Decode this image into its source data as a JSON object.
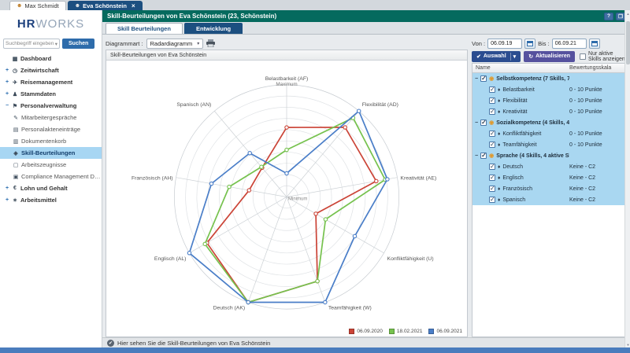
{
  "window": {
    "tabs": [
      {
        "label": "Max Schmidt",
        "active": false
      },
      {
        "label": "Eva Schönstein",
        "active": true,
        "close_glyph": "×"
      }
    ]
  },
  "brand": {
    "hr": "HR",
    "works": "WORKS"
  },
  "sidebar": {
    "search": {
      "placeholder": "Suchbegriff eingeben",
      "caret": "▾",
      "button_label": "Suchen"
    },
    "items": [
      {
        "prefix": "",
        "icon": "dashboard-icon",
        "glyph": "▦",
        "label": "Dashboard",
        "level": 0
      },
      {
        "prefix": "+",
        "icon": "clock-icon",
        "glyph": "◷",
        "label": "Zeitwirtschaft",
        "level": 0
      },
      {
        "prefix": "+",
        "icon": "travel-icon",
        "glyph": "✈",
        "label": "Reisemanagement",
        "level": 0
      },
      {
        "prefix": "+",
        "icon": "person-icon",
        "glyph": "♟",
        "label": "Stammdaten",
        "level": 0
      },
      {
        "prefix": "−",
        "icon": "people-icon",
        "glyph": "⚑",
        "label": "Personalverwaltung",
        "level": 0
      },
      {
        "prefix": "",
        "icon": "chat-icon",
        "glyph": "✎",
        "label": "Mitarbeitergespräche",
        "level": 1
      },
      {
        "prefix": "",
        "icon": "folder-icon",
        "glyph": "▤",
        "label": "Personalakteneinträge",
        "level": 1
      },
      {
        "prefix": "",
        "icon": "inbox-icon",
        "glyph": "▥",
        "label": "Dokumentenkorb",
        "level": 1
      },
      {
        "prefix": "",
        "icon": "skills-icon",
        "glyph": "◈",
        "label": "Skill-Beurteilungen",
        "level": 1,
        "selected": true
      },
      {
        "prefix": "",
        "icon": "document-icon",
        "glyph": "▢",
        "label": "Arbeitszeugnisse",
        "level": 1
      },
      {
        "prefix": "",
        "icon": "document-icon",
        "glyph": "▣",
        "label": "Compliance Management Doku...",
        "level": 1
      },
      {
        "prefix": "+",
        "icon": "money-icon",
        "glyph": "€",
        "label": "Lohn und Gehalt",
        "level": 0
      },
      {
        "prefix": "+",
        "icon": "tools-icon",
        "glyph": "✶",
        "label": "Arbeitsmittel",
        "level": 0
      }
    ]
  },
  "header": {
    "title": "Skill-Beurteilungen von Eva Schönstein (23, Schönstein)",
    "help_glyph": "?",
    "window_glyph": "❐"
  },
  "subtabs": [
    {
      "label": "Skill Beurteilungen",
      "active": true
    },
    {
      "label": "Entwicklung",
      "active": false
    }
  ],
  "toolbar": {
    "diagram_label": "Diagrammart :",
    "diagram_value": "Radardiagramm",
    "caret": "▾"
  },
  "filter": {
    "von_label": "Von :",
    "von_value": "06.09.19",
    "bis_label": "Bis :",
    "bis_value": "06.09.21",
    "auswahl_label": "Auswahl",
    "auswahl_check": "✔",
    "auswahl_caret": "▾",
    "refresh_label": "Aktualisieren",
    "refresh_glyph": "↻",
    "only_active_label": "Nur aktive Skills anzeigen"
  },
  "skills_table": {
    "columns": [
      "Name",
      "Bewertungsskala"
    ],
    "groups": [
      {
        "label": "Selbstkompetenz (7 Skills, 7...",
        "checked": true,
        "children": [
          {
            "label": "Belastbarkeit",
            "scale": "0 - 10 Punkte",
            "checked": true
          },
          {
            "label": "Flexibilität",
            "scale": "0 - 10 Punkte",
            "checked": true
          },
          {
            "label": "Kreativität",
            "scale": "0 - 10 Punkte",
            "checked": true
          }
        ]
      },
      {
        "label": "Sozialkompetenz (4 Skills, 4 ...",
        "checked": true,
        "children": [
          {
            "label": "Konfliktfähigkeit",
            "scale": "0 - 10 Punkte",
            "checked": true
          },
          {
            "label": "Teamfähigkeit",
            "scale": "0 - 10 Punkte",
            "checked": true
          }
        ]
      },
      {
        "label": "Sprache (4 Skills, 4 aktive Sk...",
        "checked": true,
        "children": [
          {
            "label": "Deutsch",
            "scale": "Keine - C2",
            "checked": true
          },
          {
            "label": "Englisch",
            "scale": "Keine - C2",
            "checked": true
          },
          {
            "label": "Französisch",
            "scale": "Keine - C2",
            "checked": true
          },
          {
            "label": "Spanisch",
            "scale": "Keine - C2",
            "checked": true
          }
        ]
      }
    ]
  },
  "chart_panel": {
    "caption": "Skill-Beurteilungen von Eva Schönstein"
  },
  "chart_data": {
    "type": "radar",
    "categories": [
      "Belastbarkeit (AF)",
      "Flexibilität (AD)",
      "Kreativität (AE)",
      "Konfliktfähigkeit (U)",
      "Teamfähigkeit (W)",
      "Deutsch (AK)",
      "Englisch (AL)",
      "Französisch (AH)",
      "Spanisch (AN)"
    ],
    "max": 10,
    "min": 0,
    "rings": 10,
    "center_label": "Minimum",
    "outer_label": "Maximum",
    "series": [
      {
        "name": "06.09.2020",
        "color": "#cb4437",
        "values": [
          6.2,
          8.1,
          8.1,
          3.0,
          8.0,
          10,
          8.2,
          3.4,
          3.4
        ]
      },
      {
        "name": "18.02.2021",
        "color": "#76c24e",
        "values": [
          4.2,
          9.2,
          8.9,
          4.0,
          8.0,
          10,
          8.4,
          5.2,
          3.5
        ]
      },
      {
        "name": "06.09.2021",
        "color": "#4a7ec8",
        "values": [
          2.1,
          10,
          9.1,
          7.0,
          10,
          10,
          10,
          6.8,
          5.1
        ]
      }
    ],
    "legend_position": "bottom-right",
    "grid": true
  },
  "status_bar": {
    "check_glyph": "✔",
    "text": "Hier sehen Sie die Skill-Beurteilungen von Eva Schönstein"
  },
  "colors": {
    "teal_header": "#056a5e",
    "active_tab": "#1c4f80",
    "row_highlight": "#a9d7f1",
    "footer": "#4a7cbd"
  }
}
